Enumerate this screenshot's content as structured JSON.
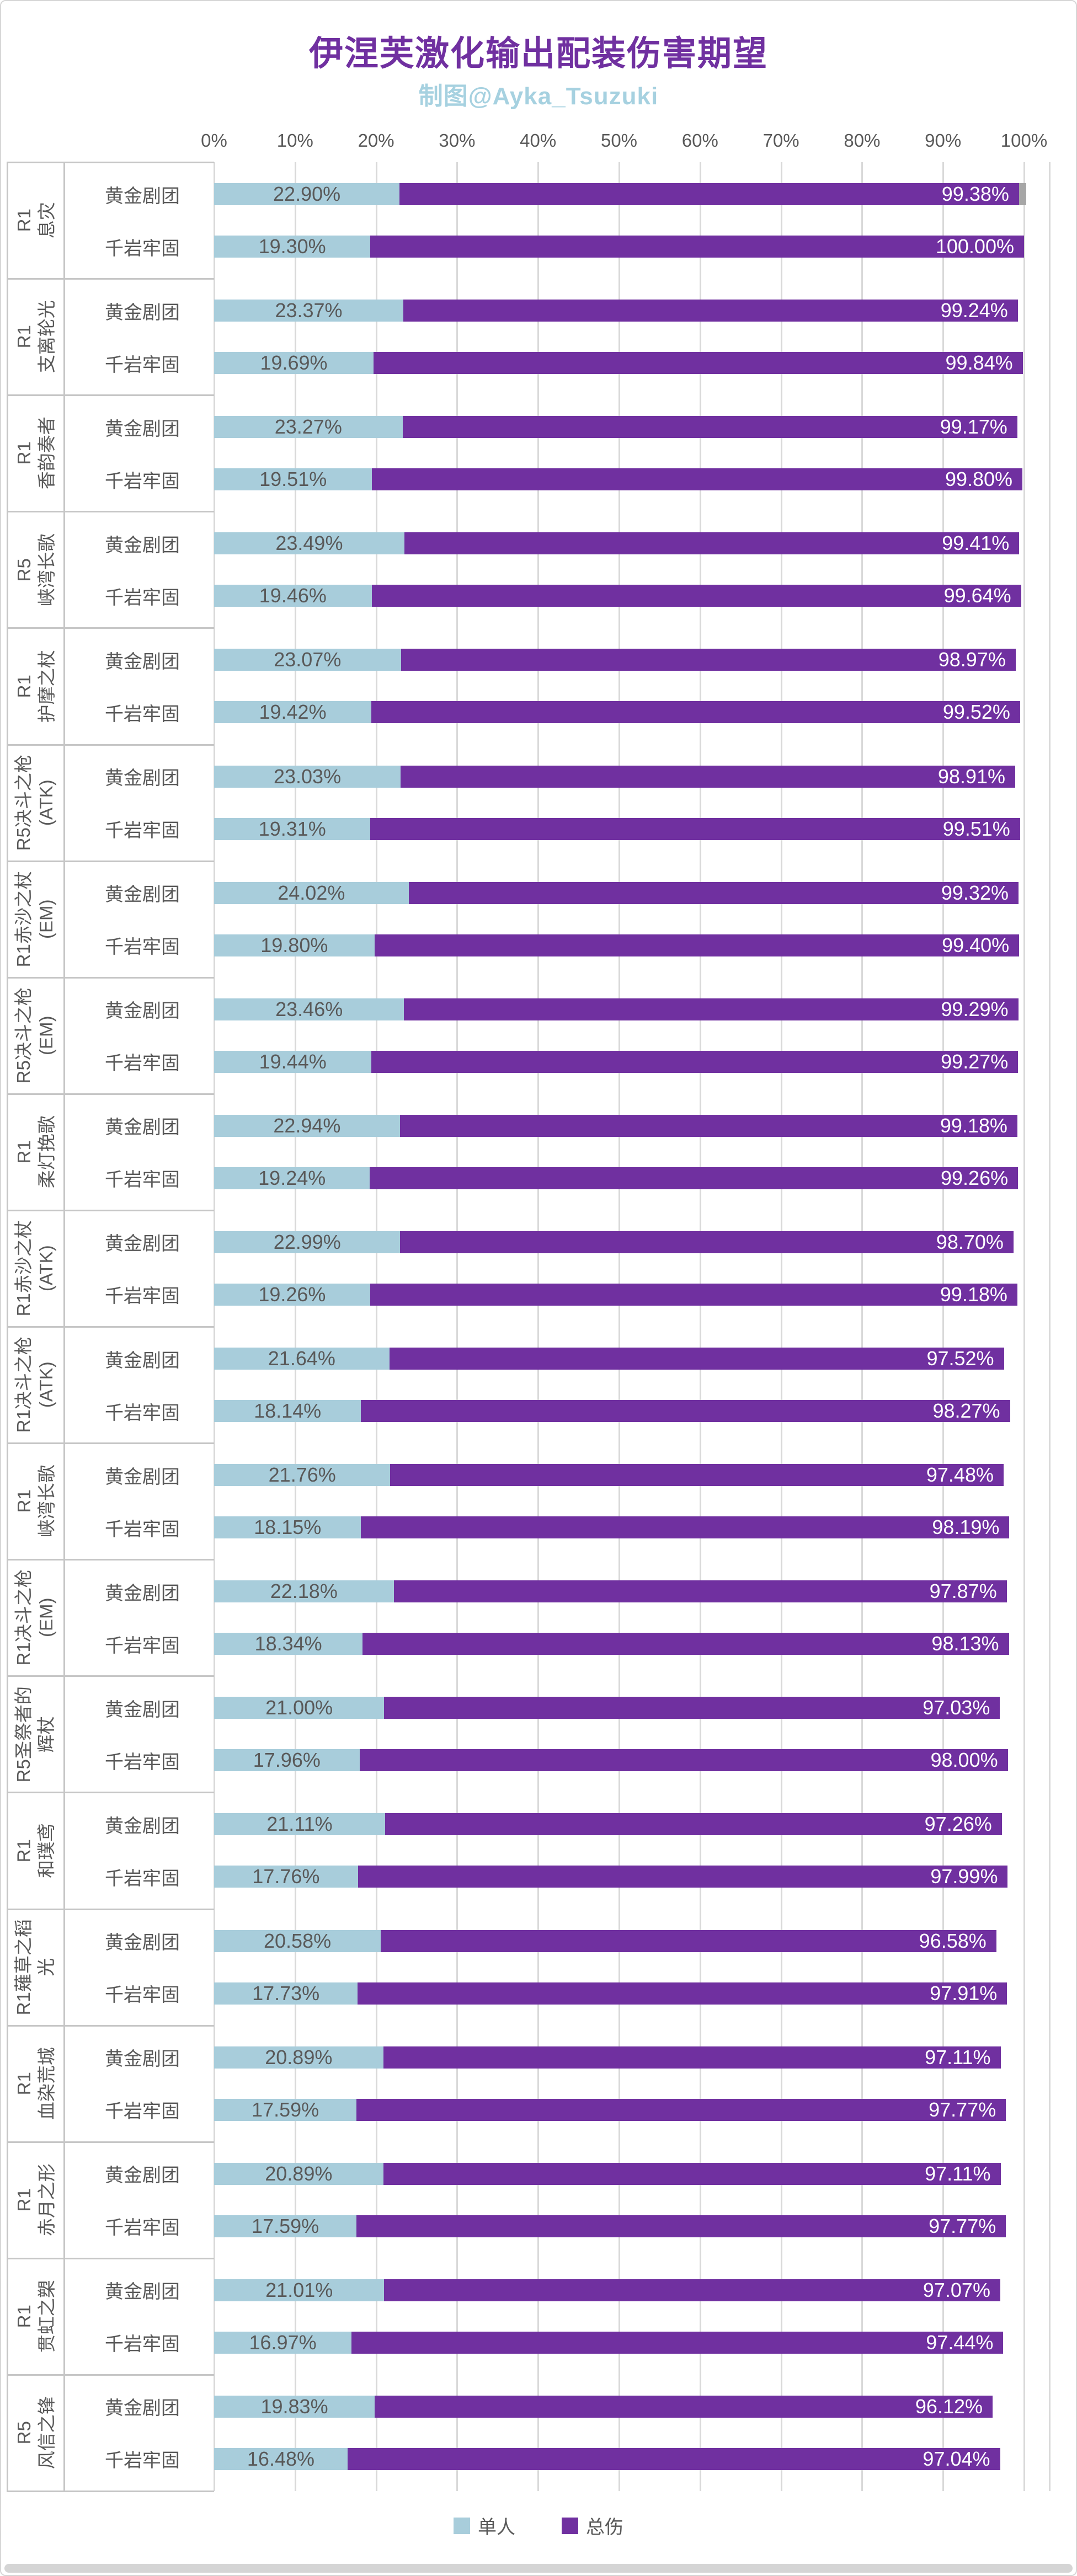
{
  "title": "伊涅芙激化输出配装伤害期望",
  "subtitle": "制图@Ayka_Tsuzuki",
  "colors": {
    "title": "#7030A0",
    "subtitle": "#A6D1E0",
    "solo": "#A8CDDB",
    "total": "#7030A0",
    "grid": "#D9D9D9",
    "panel_line": "#C6C6C6",
    "value_dark": "#595959",
    "value_light": "#FFFFFF",
    "cap": "#A6A6A6"
  },
  "legend": [
    {
      "label": "单人",
      "color_key": "solo"
    },
    {
      "label": "总伤",
      "color_key": "total"
    }
  ],
  "axis": {
    "ticks": [
      "0%",
      "10%",
      "20%",
      "30%",
      "40%",
      "50%",
      "60%",
      "70%",
      "80%",
      "90%",
      "100%"
    ],
    "min": 0,
    "max": 100
  },
  "chart_data": {
    "type": "bar",
    "orientation": "horizontal",
    "stacked": true,
    "series_names": [
      "单人",
      "总伤"
    ],
    "value_format": "percent_2dp",
    "groups": [
      {
        "label_lines": [
          "R1",
          "息灾"
        ],
        "rows": [
          {
            "set": "黄金剧团",
            "solo": 22.9,
            "total": 99.38,
            "cap": true
          },
          {
            "set": "千岩牢固",
            "solo": 19.3,
            "total": 100.0
          }
        ]
      },
      {
        "label_lines": [
          "R1",
          "支离轮光"
        ],
        "rows": [
          {
            "set": "黄金剧团",
            "solo": 23.37,
            "total": 99.24
          },
          {
            "set": "千岩牢固",
            "solo": 19.69,
            "total": 99.84
          }
        ]
      },
      {
        "label_lines": [
          "R1",
          "香韵奏者"
        ],
        "rows": [
          {
            "set": "黄金剧团",
            "solo": 23.27,
            "total": 99.17
          },
          {
            "set": "千岩牢固",
            "solo": 19.51,
            "total": 99.8
          }
        ]
      },
      {
        "label_lines": [
          "R5",
          "峡湾长歌"
        ],
        "rows": [
          {
            "set": "黄金剧团",
            "solo": 23.49,
            "total": 99.41
          },
          {
            "set": "千岩牢固",
            "solo": 19.46,
            "total": 99.64
          }
        ]
      },
      {
        "label_lines": [
          "R1",
          "护摩之杖"
        ],
        "rows": [
          {
            "set": "黄金剧团",
            "solo": 23.07,
            "total": 98.97
          },
          {
            "set": "千岩牢固",
            "solo": 19.42,
            "total": 99.52
          }
        ]
      },
      {
        "label_lines": [
          "R5决斗之枪",
          "(ATK)"
        ],
        "rows": [
          {
            "set": "黄金剧团",
            "solo": 23.03,
            "total": 98.91
          },
          {
            "set": "千岩牢固",
            "solo": 19.31,
            "total": 99.51
          }
        ]
      },
      {
        "label_lines": [
          "R1赤沙之杖",
          "(EM)"
        ],
        "rows": [
          {
            "set": "黄金剧团",
            "solo": 24.02,
            "total": 99.32
          },
          {
            "set": "千岩牢固",
            "solo": 19.8,
            "total": 99.4
          }
        ]
      },
      {
        "label_lines": [
          "R5决斗之枪",
          "(EM)"
        ],
        "rows": [
          {
            "set": "黄金剧团",
            "solo": 23.46,
            "total": 99.29
          },
          {
            "set": "千岩牢固",
            "solo": 19.44,
            "total": 99.27
          }
        ]
      },
      {
        "label_lines": [
          "R1",
          "柔灯挽歌"
        ],
        "rows": [
          {
            "set": "黄金剧团",
            "solo": 22.94,
            "total": 99.18
          },
          {
            "set": "千岩牢固",
            "solo": 19.24,
            "total": 99.26
          }
        ]
      },
      {
        "label_lines": [
          "R1赤沙之杖",
          "(ATK)"
        ],
        "rows": [
          {
            "set": "黄金剧团",
            "solo": 22.99,
            "total": 98.7
          },
          {
            "set": "千岩牢固",
            "solo": 19.26,
            "total": 99.18
          }
        ]
      },
      {
        "label_lines": [
          "R1决斗之枪",
          "(ATK)"
        ],
        "rows": [
          {
            "set": "黄金剧团",
            "solo": 21.64,
            "total": 97.52
          },
          {
            "set": "千岩牢固",
            "solo": 18.14,
            "total": 98.27
          }
        ]
      },
      {
        "label_lines": [
          "R1",
          "峡湾长歌"
        ],
        "rows": [
          {
            "set": "黄金剧团",
            "solo": 21.76,
            "total": 97.48
          },
          {
            "set": "千岩牢固",
            "solo": 18.15,
            "total": 98.19
          }
        ]
      },
      {
        "label_lines": [
          "R1决斗之枪",
          "(EM)"
        ],
        "rows": [
          {
            "set": "黄金剧团",
            "solo": 22.18,
            "total": 97.87
          },
          {
            "set": "千岩牢固",
            "solo": 18.34,
            "total": 98.13
          }
        ]
      },
      {
        "label_lines": [
          "R5圣祭者的",
          "辉杖"
        ],
        "rows": [
          {
            "set": "黄金剧团",
            "solo": 21.0,
            "total": 97.03
          },
          {
            "set": "千岩牢固",
            "solo": 17.96,
            "total": 98.0
          }
        ]
      },
      {
        "label_lines": [
          "R1",
          "和璞鸢"
        ],
        "rows": [
          {
            "set": "黄金剧团",
            "solo": 21.11,
            "total": 97.26
          },
          {
            "set": "千岩牢固",
            "solo": 17.76,
            "total": 97.99
          }
        ]
      },
      {
        "label_lines": [
          "R1薙草之稻",
          "光"
        ],
        "rows": [
          {
            "set": "黄金剧团",
            "solo": 20.58,
            "total": 96.58
          },
          {
            "set": "千岩牢固",
            "solo": 17.73,
            "total": 97.91
          }
        ]
      },
      {
        "label_lines": [
          "R1",
          "血染荒城"
        ],
        "rows": [
          {
            "set": "黄金剧团",
            "solo": 20.89,
            "total": 97.11
          },
          {
            "set": "千岩牢固",
            "solo": 17.59,
            "total": 97.77
          }
        ]
      },
      {
        "label_lines": [
          "R1",
          "赤月之形"
        ],
        "rows": [
          {
            "set": "黄金剧团",
            "solo": 20.89,
            "total": 97.11
          },
          {
            "set": "千岩牢固",
            "solo": 17.59,
            "total": 97.77
          }
        ]
      },
      {
        "label_lines": [
          "R1",
          "贯虹之槊"
        ],
        "rows": [
          {
            "set": "黄金剧团",
            "solo": 21.01,
            "total": 97.07
          },
          {
            "set": "千岩牢固",
            "solo": 16.97,
            "total": 97.44
          }
        ]
      },
      {
        "label_lines": [
          "R5",
          "风信之锋"
        ],
        "rows": [
          {
            "set": "黄金剧团",
            "solo": 19.83,
            "total": 96.12
          },
          {
            "set": "千岩牢固",
            "solo": 16.48,
            "total": 97.04
          }
        ]
      }
    ]
  }
}
